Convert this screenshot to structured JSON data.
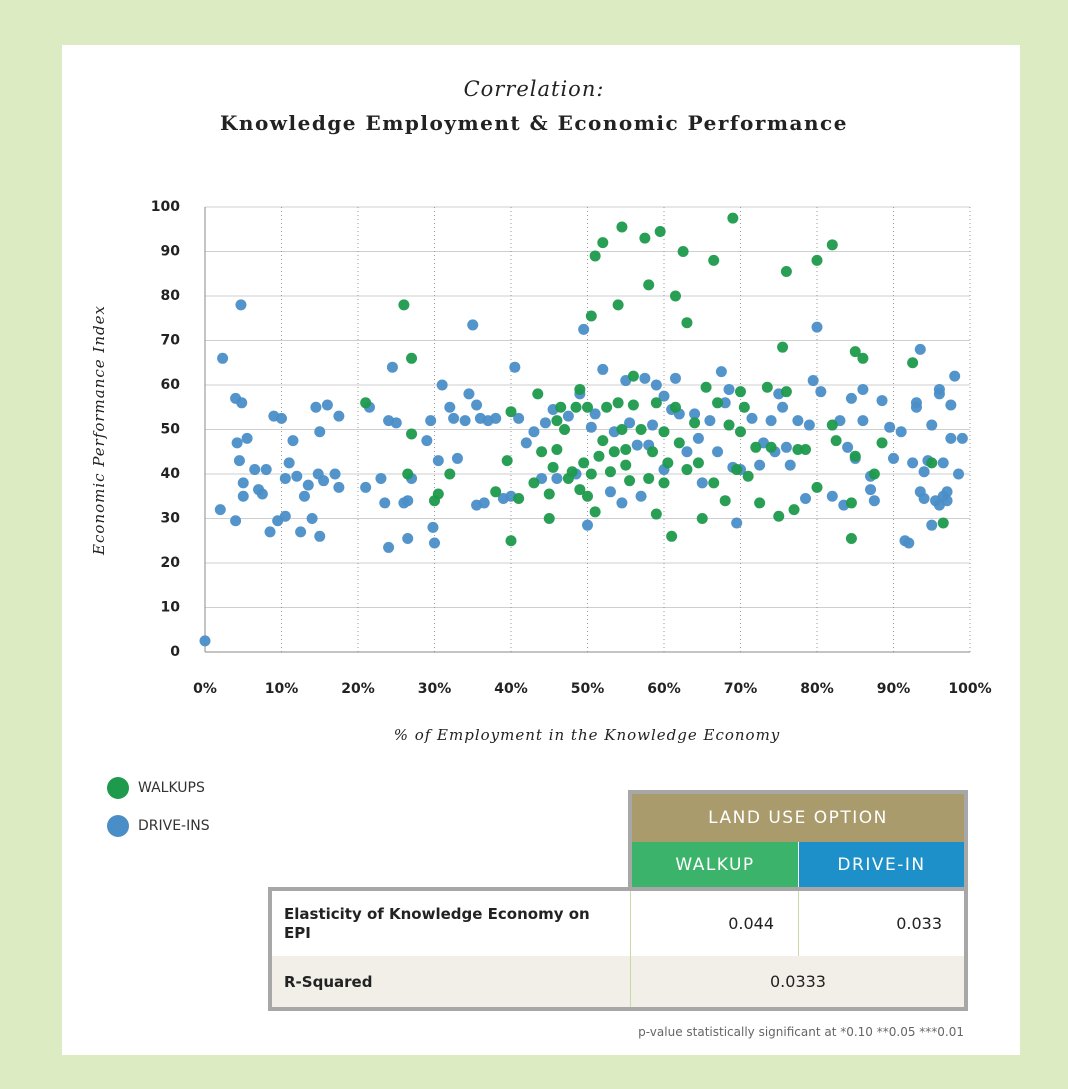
{
  "chart_data": {
    "type": "scatter",
    "title": "Correlation:",
    "subtitle": "Knowledge Employment & Economic Performance",
    "xlabel": "% of Employment in the Knowledge Economy",
    "ylabel": "Economic Performance Index",
    "xlim": [
      0,
      100
    ],
    "ylim": [
      0,
      100
    ],
    "xticks": [
      {
        "value": 0,
        "label": "0%"
      },
      {
        "value": 10,
        "label": "10%"
      },
      {
        "value": 20,
        "label": "20%"
      },
      {
        "value": 30,
        "label": "30%"
      },
      {
        "value": 40,
        "label": "40%"
      },
      {
        "value": 50,
        "label": "50%"
      },
      {
        "value": 60,
        "label": "60%"
      },
      {
        "value": 70,
        "label": "70%"
      },
      {
        "value": 80,
        "label": "80%"
      },
      {
        "value": 90,
        "label": "90%"
      },
      {
        "value": 100,
        "label": "100%"
      }
    ],
    "yticks": [
      0,
      10,
      20,
      30,
      40,
      50,
      60,
      70,
      80,
      90,
      100
    ],
    "grid": true,
    "series": [
      {
        "name": "WALKUPS",
        "color": "#1e9a4c",
        "x": [
          21,
          26,
          26.5,
          27,
          27,
          30,
          30.5,
          32,
          38,
          39.5,
          40,
          40,
          41,
          43,
          43.5,
          44,
          45,
          45,
          45.5,
          46,
          46,
          46.5,
          47,
          47.5,
          48,
          48.5,
          49,
          49,
          49.5,
          50,
          50,
          50.5,
          50.5,
          51,
          51,
          51.5,
          52,
          52,
          52.5,
          53,
          53.5,
          54,
          54,
          54.5,
          54.5,
          55,
          55,
          55.5,
          56,
          56,
          57,
          57.5,
          58,
          58,
          58.5,
          59,
          59,
          59.5,
          60,
          60,
          60.5,
          61,
          61.5,
          61.5,
          62,
          62.5,
          63,
          63,
          64,
          64.5,
          65,
          65.5,
          66.5,
          66.5,
          67,
          68,
          68.5,
          69,
          69.5,
          70,
          70,
          70.5,
          71,
          72,
          72.5,
          73.5,
          74,
          75,
          75.5,
          76,
          76,
          77,
          77.5,
          78.5,
          80,
          80,
          82,
          82,
          82.5,
          84.5,
          84.5,
          85,
          85,
          86,
          87.5,
          88.5,
          92.5,
          95,
          96.5
        ],
        "values": [
          56,
          78,
          40,
          66,
          49,
          34,
          35.5,
          40,
          36,
          43,
          54,
          25,
          34.5,
          38,
          58,
          45,
          30,
          35.5,
          41.5,
          52,
          45.5,
          55,
          50,
          39,
          40.5,
          55,
          59,
          36.5,
          42.5,
          35,
          55,
          75.5,
          40,
          89,
          31.5,
          44,
          92,
          47.5,
          55,
          40.5,
          45,
          56,
          78,
          95.5,
          50,
          42,
          45.5,
          38.5,
          55.5,
          62,
          50,
          93,
          82.5,
          39,
          45,
          31,
          56,
          94.5,
          38,
          49.5,
          42.5,
          26,
          80,
          55,
          47,
          90,
          74,
          41,
          51.5,
          42.5,
          30,
          59.5,
          88,
          38,
          56,
          34,
          51,
          97.5,
          41,
          49.5,
          58.5,
          55,
          39.5,
          46,
          33.5,
          59.5,
          46,
          30.5,
          68.5,
          58.5,
          85.5,
          32,
          45.5,
          45.5,
          88,
          37,
          91.5,
          51,
          47.5,
          33.5,
          25.5,
          67.5,
          44,
          66,
          40,
          47,
          65,
          42.5,
          29
        ]
      },
      {
        "name": "DRIVE-INS",
        "color": "#4a8ec7",
        "x": [
          0,
          2,
          2.3,
          4,
          4,
          4.2,
          4.5,
          4.7,
          4.8,
          5,
          5,
          5.5,
          6.5,
          7,
          7.5,
          8,
          8.5,
          9,
          9.5,
          10,
          10.5,
          10.5,
          11,
          11.5,
          12,
          12.5,
          13,
          13.5,
          14,
          14.5,
          14.8,
          15,
          15,
          15.5,
          16,
          17,
          17.5,
          17.5,
          21,
          21.5,
          23,
          23.5,
          24,
          24,
          24.5,
          25,
          26,
          26.5,
          26.5,
          27,
          29,
          29.5,
          29.8,
          30,
          30.5,
          31,
          32,
          32.5,
          33,
          34,
          34.5,
          35,
          35.5,
          35.5,
          36,
          36.5,
          37,
          38,
          39,
          40,
          40.5,
          41,
          42,
          43,
          44,
          44.5,
          45.5,
          46,
          47.5,
          48.5,
          49,
          49.5,
          50,
          50.5,
          51,
          52,
          53,
          53.5,
          54.5,
          55,
          55.5,
          56.5,
          57,
          57.5,
          58,
          58.5,
          59,
          60,
          60,
          61,
          61.5,
          62,
          63,
          64,
          64.5,
          65,
          66,
          67,
          67.5,
          68,
          68.5,
          69,
          69.5,
          70,
          71.5,
          72.5,
          73,
          74,
          74.5,
          75,
          75.5,
          76,
          76.5,
          77.5,
          78.5,
          79,
          79.5,
          80,
          80.5,
          82,
          83,
          83.5,
          84,
          84.5,
          85,
          86,
          86,
          87,
          87,
          87.5,
          88.5,
          89.5,
          90,
          91,
          91.5,
          92,
          92.5,
          93,
          93,
          93.5,
          93.5,
          94,
          94,
          94.5,
          95,
          95,
          95.5,
          96,
          96,
          96,
          96.5,
          96.5,
          97,
          97,
          97.5,
          97.5,
          98,
          98.5,
          99
        ],
        "values": [
          2.5,
          32,
          66,
          57,
          29.5,
          47,
          43,
          78,
          56,
          38,
          35,
          48,
          41,
          36.5,
          35.5,
          41,
          27,
          53,
          29.5,
          52.5,
          39,
          30.5,
          42.5,
          47.5,
          39.5,
          27,
          35,
          37.5,
          30,
          55,
          40,
          49.5,
          26,
          38.5,
          55.5,
          40,
          37,
          53,
          37,
          55,
          39,
          33.5,
          52,
          23.5,
          64,
          51.5,
          33.5,
          34,
          25.5,
          39,
          47.5,
          52,
          28,
          24.5,
          43,
          60,
          55,
          52.5,
          43.5,
          52,
          58,
          73.5,
          33,
          55.5,
          52.5,
          33.5,
          52,
          52.5,
          34.5,
          35,
          64,
          52.5,
          47,
          49.5,
          39,
          51.5,
          54.5,
          39,
          53,
          40,
          58,
          72.5,
          28.5,
          50.5,
          53.5,
          63.5,
          36,
          49.5,
          33.5,
          61,
          51.5,
          46.5,
          35,
          61.5,
          46.5,
          51,
          60,
          41,
          57.5,
          54.5,
          61.5,
          53.5,
          45,
          53.5,
          48,
          38,
          52,
          45,
          63,
          56,
          59,
          41.5,
          29,
          41,
          52.5,
          42,
          47,
          52,
          45,
          58,
          55,
          46,
          42,
          52,
          34.5,
          51,
          61,
          73,
          58.5,
          35,
          52,
          33,
          46,
          57,
          43.5,
          59,
          52,
          39.5,
          36.5,
          34,
          56.5,
          50.5,
          43.5,
          49.5,
          25,
          24.5,
          42.5,
          56,
          55,
          68,
          36,
          34.5,
          40.5,
          43,
          51,
          28.5,
          34,
          59,
          58,
          33,
          35,
          42.5,
          36,
          34,
          48,
          55.5,
          62,
          40,
          48
        ]
      }
    ]
  },
  "table": {
    "header": "LAND USE OPTION",
    "columns": [
      "WALKUP",
      "DRIVE-IN"
    ],
    "rows": [
      {
        "label": "Elasticity of Knowledge Economy on EPI",
        "values": [
          0.044,
          0.033
        ]
      },
      {
        "label": "R-Squared",
        "value": 0.0333
      }
    ]
  },
  "footnote": "p-value statistically significant at *0.10 **0.05 ***0.01"
}
